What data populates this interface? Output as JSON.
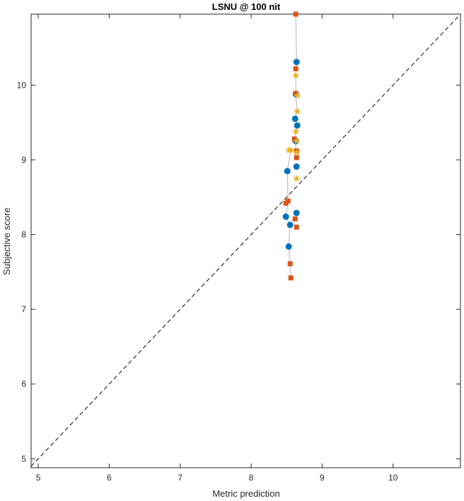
{
  "chart_data": {
    "type": "scatter",
    "title": "LSNU @ 100 nit",
    "xlabel": "Metric prediction",
    "ylabel": "Subjective score",
    "xlim": [
      4.9,
      10.95
    ],
    "ylim": [
      4.88,
      10.95
    ],
    "xticks": [
      5,
      6,
      7,
      8,
      9,
      10
    ],
    "yticks": [
      5,
      6,
      7,
      8,
      9,
      10
    ],
    "grid": false,
    "diagonal_reference": true,
    "colors": {
      "connector": "#bfbfbf",
      "diagonal": "#000000",
      "axes": "#262626",
      "series_1": "#0072bd",
      "series_2": "#d95319",
      "series_3": "#edb120"
    },
    "series": [
      {
        "marker": "circle",
        "color": "#0072bd",
        "points": [
          {
            "x": 8.64,
            "y": 10.31
          },
          {
            "x": 8.63,
            "y": 9.88
          },
          {
            "x": 8.62,
            "y": 9.55
          },
          {
            "x": 8.65,
            "y": 9.46
          },
          {
            "x": 8.63,
            "y": 9.25
          },
          {
            "x": 8.64,
            "y": 8.91
          },
          {
            "x": 8.51,
            "y": 8.85
          },
          {
            "x": 8.64,
            "y": 8.29
          },
          {
            "x": 8.49,
            "y": 8.24
          },
          {
            "x": 8.55,
            "y": 8.13
          },
          {
            "x": 8.53,
            "y": 7.84
          }
        ]
      },
      {
        "marker": "square",
        "color": "#d95319",
        "points": [
          {
            "x": 8.63,
            "y": 10.95
          },
          {
            "x": 8.63,
            "y": 10.22
          },
          {
            "x": 8.63,
            "y": 9.89
          },
          {
            "x": 8.61,
            "y": 9.28
          },
          {
            "x": 8.64,
            "y": 9.12
          },
          {
            "x": 8.64,
            "y": 9.03
          },
          {
            "x": 8.52,
            "y": 8.45
          },
          {
            "x": 8.49,
            "y": 8.42
          },
          {
            "x": 8.62,
            "y": 8.21
          },
          {
            "x": 8.64,
            "y": 8.1
          },
          {
            "x": 8.55,
            "y": 7.61
          },
          {
            "x": 8.56,
            "y": 7.42
          }
        ]
      },
      {
        "marker": "star",
        "color": "#edb120",
        "points": [
          {
            "x": 8.63,
            "y": 10.13
          },
          {
            "x": 8.65,
            "y": 9.86
          },
          {
            "x": 8.65,
            "y": 9.65
          },
          {
            "x": 8.63,
            "y": 9.38
          },
          {
            "x": 8.64,
            "y": 9.25
          },
          {
            "x": 8.56,
            "y": 9.13
          },
          {
            "x": 8.53,
            "y": 9.13
          },
          {
            "x": 8.64,
            "y": 9.1
          },
          {
            "x": 8.64,
            "y": 8.75
          }
        ]
      }
    ],
    "connector_path": [
      {
        "x": 8.63,
        "y": 10.95
      },
      {
        "x": 8.64,
        "y": 10.31
      },
      {
        "x": 8.63,
        "y": 10.13
      },
      {
        "x": 8.63,
        "y": 9.88
      },
      {
        "x": 8.65,
        "y": 9.65
      },
      {
        "x": 8.62,
        "y": 9.55
      },
      {
        "x": 8.65,
        "y": 9.46
      },
      {
        "x": 8.61,
        "y": 9.28
      },
      {
        "x": 8.64,
        "y": 9.12
      },
      {
        "x": 8.56,
        "y": 9.13
      },
      {
        "x": 8.51,
        "y": 8.85
      },
      {
        "x": 8.52,
        "y": 8.45
      },
      {
        "x": 8.49,
        "y": 8.24
      },
      {
        "x": 8.55,
        "y": 8.13
      },
      {
        "x": 8.53,
        "y": 7.84
      },
      {
        "x": 8.55,
        "y": 7.61
      },
      {
        "x": 8.56,
        "y": 7.42
      }
    ]
  }
}
